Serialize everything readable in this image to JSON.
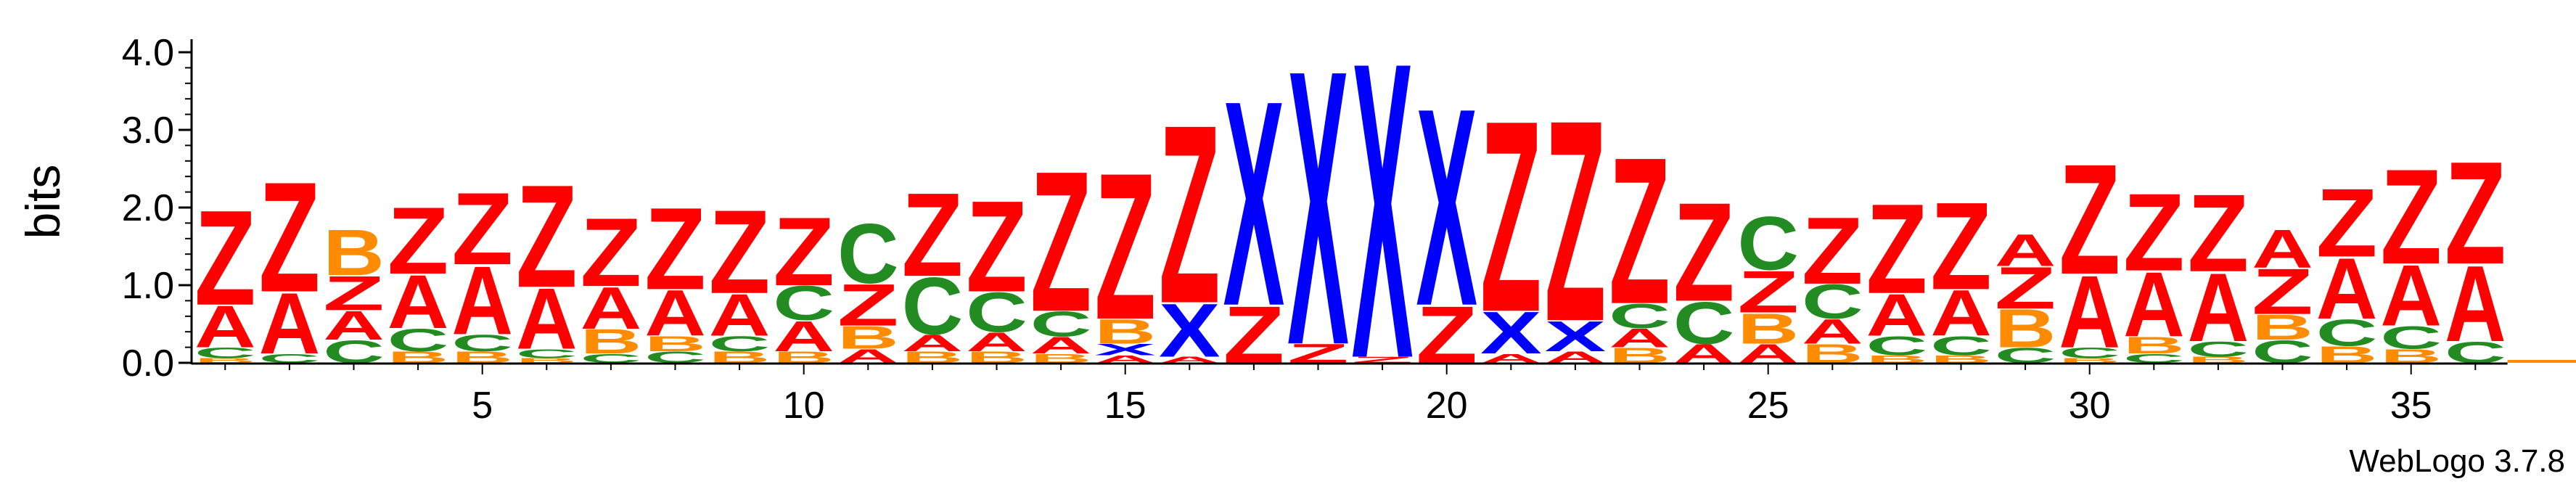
{
  "chart_data": {
    "type": "sequence-logo",
    "ylabel": "bits",
    "ylim": [
      0,
      4
    ],
    "yticks": [
      "0.0",
      "1.0",
      "2.0",
      "3.0",
      "4.0"
    ],
    "xticks": [
      "5",
      "10",
      "15",
      "20",
      "25",
      "30",
      "35"
    ],
    "positions": [
      1,
      36
    ],
    "footer": "WebLogo 3.7.8",
    "colors": {
      "Z": "#ff0000",
      "A": "#ff0000",
      "B": "#ff8c00",
      "C": "#228b22",
      "X": "#0000ff"
    },
    "columns": [
      {
        "stack": [
          [
            "B",
            0.06
          ],
          [
            "C",
            0.14
          ],
          [
            "A",
            0.55
          ],
          [
            "Z",
            1.25
          ]
        ]
      },
      {
        "stack": [
          [
            "C",
            0.12
          ],
          [
            "A",
            0.8
          ],
          [
            "Z",
            1.45
          ]
        ]
      },
      {
        "stack": [
          [
            "C",
            0.3
          ],
          [
            "A",
            0.38
          ],
          [
            "Z",
            0.45
          ],
          [
            "B",
            0.6
          ]
        ]
      },
      {
        "stack": [
          [
            "B",
            0.15
          ],
          [
            "C",
            0.3
          ],
          [
            "A",
            0.7
          ],
          [
            "Z",
            0.88
          ]
        ]
      },
      {
        "stack": [
          [
            "B",
            0.15
          ],
          [
            "C",
            0.22
          ],
          [
            "A",
            0.9
          ],
          [
            "Z",
            0.95
          ]
        ]
      },
      {
        "stack": [
          [
            "B",
            0.06
          ],
          [
            "C",
            0.12
          ],
          [
            "A",
            0.8
          ],
          [
            "Z",
            1.35
          ]
        ]
      },
      {
        "stack": [
          [
            "C",
            0.12
          ],
          [
            "B",
            0.32
          ],
          [
            "A",
            0.55
          ],
          [
            "Z",
            0.9
          ]
        ]
      },
      {
        "stack": [
          [
            "C",
            0.15
          ],
          [
            "B",
            0.2
          ],
          [
            "A",
            0.6
          ],
          [
            "Z",
            1.08
          ]
        ]
      },
      {
        "stack": [
          [
            "B",
            0.15
          ],
          [
            "C",
            0.2
          ],
          [
            "A",
            0.55
          ],
          [
            "Z",
            1.1
          ]
        ]
      },
      {
        "stack": [
          [
            "B",
            0.15
          ],
          [
            "A",
            0.4
          ],
          [
            "C",
            0.45
          ],
          [
            "Z",
            0.9
          ]
        ]
      },
      {
        "stack": [
          [
            "A",
            0.18
          ],
          [
            "B",
            0.3
          ],
          [
            "Z",
            0.55
          ],
          [
            "C",
            0.78
          ]
        ]
      },
      {
        "stack": [
          [
            "B",
            0.15
          ],
          [
            "A",
            0.22
          ],
          [
            "C",
            0.75
          ],
          [
            "Z",
            1.1
          ]
        ]
      },
      {
        "stack": [
          [
            "B",
            0.15
          ],
          [
            "A",
            0.25
          ],
          [
            "C",
            0.52
          ],
          [
            "Z",
            1.2
          ]
        ]
      },
      {
        "stack": [
          [
            "B",
            0.12
          ],
          [
            "A",
            0.22
          ],
          [
            "C",
            0.33
          ],
          [
            "Z",
            1.85
          ]
        ]
      },
      {
        "stack": [
          [
            "A",
            0.1
          ],
          [
            "X",
            0.15
          ],
          [
            "B",
            0.32
          ],
          [
            "Z",
            1.93
          ]
        ]
      },
      {
        "stack": [
          [
            "A",
            0.08
          ],
          [
            "X",
            0.7
          ],
          [
            "Z",
            2.35
          ]
        ]
      },
      {
        "stack": [
          [
            "Z",
            0.75
          ],
          [
            "X",
            2.7
          ]
        ]
      },
      {
        "stack": [
          [
            "Z",
            0.25
          ],
          [
            "X",
            3.62
          ]
        ]
      },
      {
        "stack": [
          [
            "Z",
            0.08
          ],
          [
            "X",
            3.9
          ]
        ]
      },
      {
        "stack": [
          [
            "Z",
            0.75
          ],
          [
            "X",
            2.6
          ]
        ]
      },
      {
        "stack": [
          [
            "A",
            0.12
          ],
          [
            "X",
            0.55
          ],
          [
            "Z",
            2.52
          ]
        ]
      },
      {
        "stack": [
          [
            "A",
            0.15
          ],
          [
            "X",
            0.4
          ],
          [
            "Z",
            2.65
          ]
        ]
      },
      {
        "stack": [
          [
            "B",
            0.2
          ],
          [
            "A",
            0.25
          ],
          [
            "C",
            0.32
          ],
          [
            "Z",
            1.93
          ]
        ]
      },
      {
        "stack": [
          [
            "A",
            0.25
          ],
          [
            "C",
            0.55
          ],
          [
            "Z",
            1.3
          ]
        ]
      },
      {
        "stack": [
          [
            "A",
            0.25
          ],
          [
            "B",
            0.4
          ],
          [
            "Z",
            0.55
          ],
          [
            "C",
            0.7
          ]
        ]
      },
      {
        "stack": [
          [
            "B",
            0.25
          ],
          [
            "A",
            0.32
          ],
          [
            "C",
            0.45
          ],
          [
            "Z",
            0.88
          ]
        ]
      },
      {
        "stack": [
          [
            "B",
            0.1
          ],
          [
            "C",
            0.25
          ],
          [
            "A",
            0.55
          ],
          [
            "Z",
            1.18
          ]
        ]
      },
      {
        "stack": [
          [
            "B",
            0.1
          ],
          [
            "C",
            0.25
          ],
          [
            "A",
            0.6
          ],
          [
            "Z",
            1.15
          ]
        ]
      },
      {
        "stack": [
          [
            "C",
            0.2
          ],
          [
            "B",
            0.5
          ],
          [
            "Z",
            0.55
          ],
          [
            "A",
            0.42
          ]
        ]
      },
      {
        "stack": [
          [
            "B",
            0.06
          ],
          [
            "C",
            0.14
          ],
          [
            "A",
            0.95
          ],
          [
            "Z",
            1.45
          ]
        ]
      },
      {
        "stack": [
          [
            "C",
            0.12
          ],
          [
            "B",
            0.22
          ],
          [
            "A",
            0.85
          ],
          [
            "Z",
            1.02
          ]
        ]
      },
      {
        "stack": [
          [
            "B",
            0.08
          ],
          [
            "C",
            0.2
          ],
          [
            "A",
            0.9
          ],
          [
            "Z",
            1.02
          ]
        ]
      },
      {
        "stack": [
          [
            "C",
            0.3
          ],
          [
            "B",
            0.33
          ],
          [
            "Z",
            0.6
          ],
          [
            "A",
            0.5
          ]
        ]
      },
      {
        "stack": [
          [
            "B",
            0.22
          ],
          [
            "C",
            0.35
          ],
          [
            "A",
            0.8
          ],
          [
            "Z",
            0.9
          ]
        ]
      },
      {
        "stack": [
          [
            "B",
            0.18
          ],
          [
            "C",
            0.3
          ],
          [
            "A",
            0.8
          ],
          [
            "Z",
            1.25
          ]
        ]
      },
      {
        "stack": [
          [
            "C",
            0.28
          ],
          [
            "A",
            1.0
          ],
          [
            "Z",
            1.35
          ]
        ]
      }
    ]
  }
}
